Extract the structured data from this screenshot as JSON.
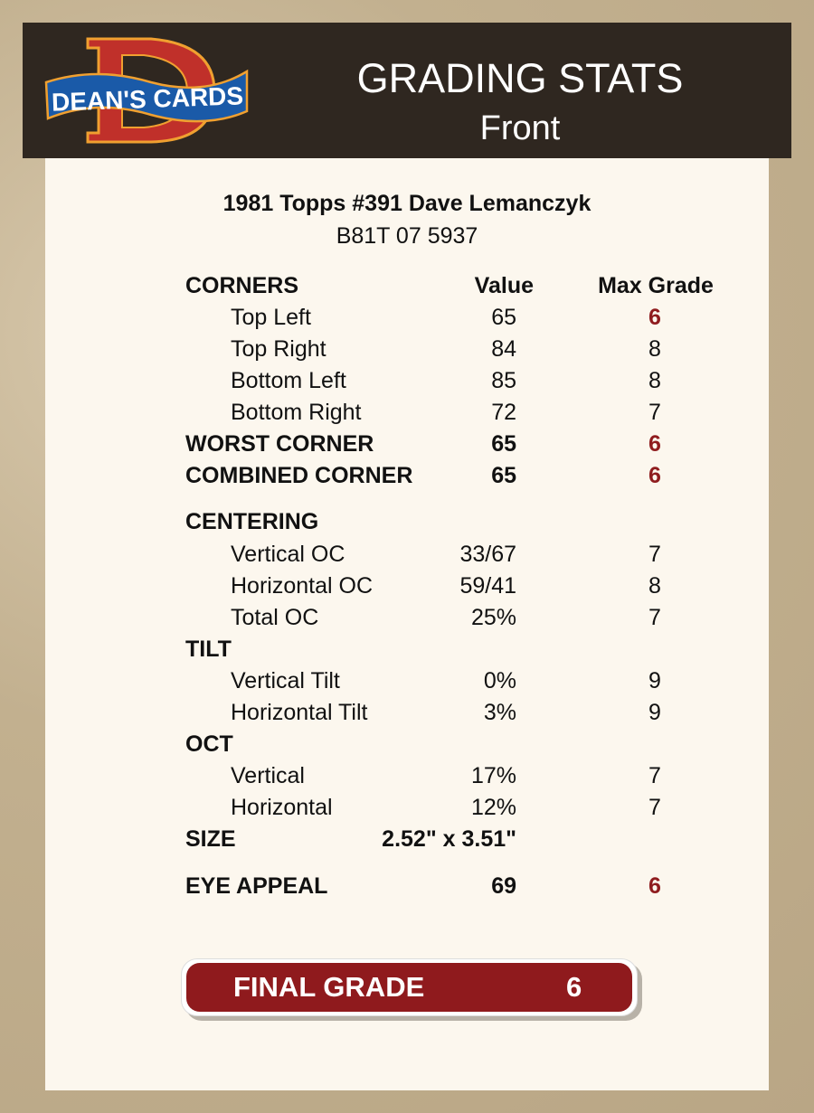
{
  "header": {
    "logo_text": "DEAN'S CARDS",
    "title": "GRADING STATS",
    "subtitle": "Front"
  },
  "card": {
    "name": "1981 Topps #391 Dave Lemanczyk",
    "cert": "B81T 07 5937"
  },
  "colors": {
    "bad_grade": "#8f1c1e",
    "final_bg": "#8f1a1d",
    "header_bg": "#2f2720"
  },
  "rows": [
    {
      "type": "colhead",
      "label": "CORNERS",
      "value": "Value",
      "max": "Max Grade"
    },
    {
      "type": "sub",
      "label": "Top Left",
      "value": "65",
      "max": "6",
      "bad": true
    },
    {
      "type": "sub",
      "label": "Top Right",
      "value": "84",
      "max": "8"
    },
    {
      "type": "sub",
      "label": "Bottom Left",
      "value": "85",
      "max": "8"
    },
    {
      "type": "sub",
      "label": "Bottom Right",
      "value": "72",
      "max": "7"
    },
    {
      "type": "head",
      "label": "WORST CORNER",
      "value": "65",
      "max": "6",
      "bad": true
    },
    {
      "type": "head",
      "label": "COMBINED CORNER",
      "value": "65",
      "max": "6",
      "bad": true
    },
    {
      "type": "head",
      "label": "CENTERING",
      "value": "",
      "max": ""
    },
    {
      "type": "sub",
      "label": "Vertical OC",
      "value": "33/67",
      "max": "7"
    },
    {
      "type": "sub",
      "label": "Horizontal OC",
      "value": "59/41",
      "max": "8"
    },
    {
      "type": "sub",
      "label": "Total OC",
      "value": "25%",
      "max": "7"
    },
    {
      "type": "head",
      "label": "TILT",
      "value": "",
      "max": ""
    },
    {
      "type": "sub",
      "label": "Vertical Tilt",
      "value": "0%",
      "max": "9"
    },
    {
      "type": "sub",
      "label": "Horizontal Tilt",
      "value": "3%",
      "max": "9"
    },
    {
      "type": "head",
      "label": "OCT",
      "value": "",
      "max": ""
    },
    {
      "type": "sub",
      "label": "Vertical",
      "value": "17%",
      "max": "7"
    },
    {
      "type": "sub",
      "label": "Horizontal",
      "value": "12%",
      "max": "7"
    },
    {
      "type": "head",
      "label": "SIZE",
      "value": "2.52\" x 3.51\"",
      "max": ""
    },
    {
      "type": "head",
      "label": "EYE APPEAL",
      "value": "69",
      "max": "6",
      "bad": true
    }
  ],
  "final": {
    "label": "FINAL GRADE",
    "value": "6"
  }
}
